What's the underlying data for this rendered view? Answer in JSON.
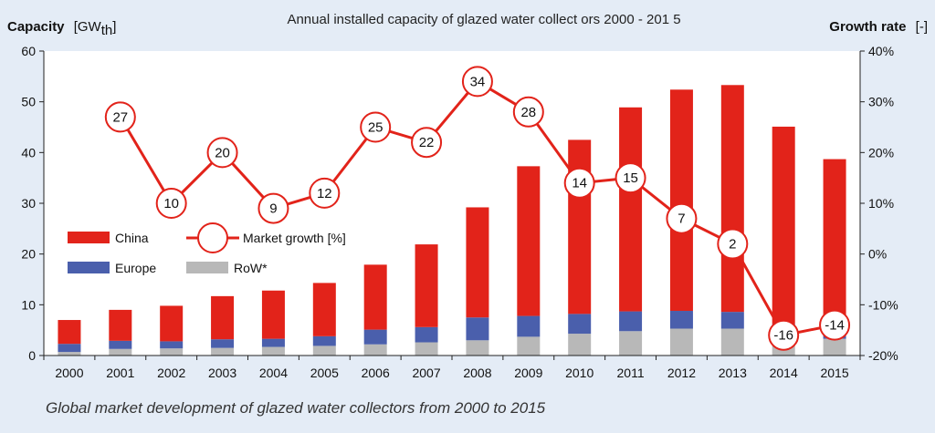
{
  "chart_data": {
    "type": "bar",
    "title": "Annual installed capacity of glazed water collect  ors 2000 - 201 5",
    "y_left_label": "Capacity",
    "y_left_unit": "[GW",
    "y_left_unit_sub": "th",
    "y_left_unit_close": "]",
    "y_right_label": "Growth rate",
    "y_right_unit": "[-]",
    "categories": [
      "2000",
      "2001",
      "2002",
      "2003",
      "2004",
      "2005",
      "2006",
      "2007",
      "2008",
      "2009",
      "2010",
      "2011",
      "2012",
      "2013",
      "2014",
      "2015"
    ],
    "ylim_left": [
      0,
      60
    ],
    "yticks_left": [
      "0",
      "10",
      "20",
      "30",
      "40",
      "50",
      "60"
    ],
    "ylim_right": [
      -20,
      40
    ],
    "yticks_right": [
      "-20%",
      "-10%",
      "0%",
      "10%",
      "20%",
      "30%",
      "40%"
    ],
    "series": [
      {
        "name": "RoW*",
        "color": "#b8b8b8",
        "values": [
          0.7,
          1.3,
          1.4,
          1.5,
          1.7,
          1.9,
          2.2,
          2.6,
          3.0,
          3.7,
          4.3,
          4.8,
          5.3,
          5.3,
          3.3,
          3.3
        ]
      },
      {
        "name": "Europe",
        "color": "#4a5fac",
        "values": [
          1.6,
          1.6,
          1.4,
          1.7,
          1.6,
          1.9,
          2.9,
          3.0,
          4.5,
          4.1,
          3.9,
          3.9,
          3.5,
          3.3,
          2.9,
          2.7
        ]
      },
      {
        "name": "China",
        "color": "#e2231a",
        "values": [
          4.7,
          6.1,
          7.0,
          8.5,
          9.5,
          10.5,
          12.8,
          16.3,
          21.7,
          29.5,
          34.3,
          40.2,
          43.6,
          44.7,
          38.9,
          32.7
        ]
      }
    ],
    "growth": {
      "name": "Market growth [%]",
      "color": "#e2231a",
      "values": [
        null,
        27,
        10,
        20,
        9,
        12,
        25,
        22,
        34,
        28,
        14,
        15,
        7,
        2,
        -16,
        -14
      ],
      "labels": [
        "",
        "27",
        "10",
        "20",
        "9",
        "12",
        "25",
        "22",
        "34",
        "28",
        "14",
        "15",
        "7",
        "2",
        "-16",
        "-14"
      ]
    },
    "legend": [
      {
        "label": "China",
        "color": "#e2231a"
      },
      {
        "label": "Market growth [%]",
        "color": "#e2231a"
      },
      {
        "label": "Europe",
        "color": "#4a5fac"
      },
      {
        "label": "RoW*",
        "color": "#b8b8b8"
      }
    ],
    "grid": false,
    "caption": "Global market development of glazed water collectors from 2000 to 2015"
  }
}
